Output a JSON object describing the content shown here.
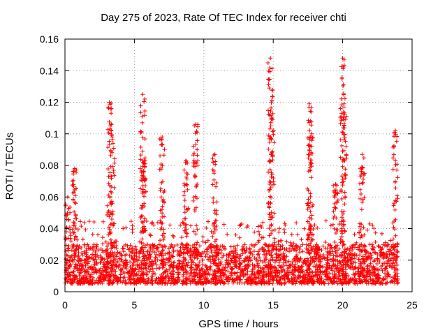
{
  "chart_data": {
    "type": "scatter",
    "title": "Day 275 of 2023, Rate Of TEC Index for receiver chti",
    "xlabel": "GPS time / hours",
    "ylabel": "ROTI / TECUs",
    "xlim": [
      0,
      25
    ],
    "ylim": [
      0,
      0.16
    ],
    "xticks": [
      0,
      5,
      10,
      15,
      20,
      25
    ],
    "yticks": [
      0,
      0.02,
      0.04,
      0.06,
      0.08,
      0.1,
      0.12,
      0.14,
      0.16
    ],
    "xtick_labels": [
      "0",
      "5",
      "10",
      "15",
      "20",
      "25"
    ],
    "ytick_labels": [
      "0",
      "0.02",
      "0.04",
      "0.06",
      "0.08",
      "0.1",
      "0.12",
      "0.14",
      "0.16"
    ],
    "grid": true,
    "marker": "+",
    "color": "#ff0000",
    "series": [
      {
        "name": "ROTI",
        "x_range_hours": [
          0,
          24
        ],
        "baseline_band": [
          0.005,
          0.03
        ],
        "peaks": [
          {
            "x": 0.2,
            "y": 0.06
          },
          {
            "x": 0.7,
            "y": 0.078
          },
          {
            "x": 3.2,
            "y": 0.12
          },
          {
            "x": 3.4,
            "y": 0.098
          },
          {
            "x": 5.6,
            "y": 0.125
          },
          {
            "x": 5.7,
            "y": 0.083
          },
          {
            "x": 7.0,
            "y": 0.098
          },
          {
            "x": 8.7,
            "y": 0.083
          },
          {
            "x": 9.4,
            "y": 0.106
          },
          {
            "x": 10.8,
            "y": 0.087
          },
          {
            "x": 14.8,
            "y": 0.148
          },
          {
            "x": 14.9,
            "y": 0.121
          },
          {
            "x": 17.6,
            "y": 0.119
          },
          {
            "x": 17.7,
            "y": 0.098
          },
          {
            "x": 19.5,
            "y": 0.068
          },
          {
            "x": 20.0,
            "y": 0.148
          },
          {
            "x": 20.1,
            "y": 0.119
          },
          {
            "x": 21.4,
            "y": 0.087
          },
          {
            "x": 23.8,
            "y": 0.102
          }
        ]
      }
    ]
  }
}
